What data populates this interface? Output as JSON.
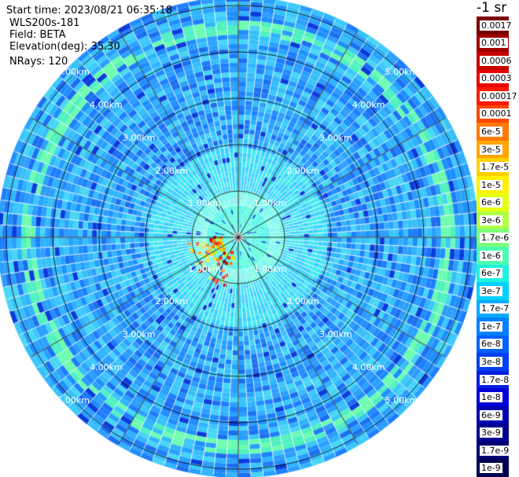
{
  "info": {
    "start_time": "Start time: 2023/08/21 06:35:18",
    "instrument": "WLS200s-181",
    "field": "Field: BETA",
    "elevation": "Elevation(deg): 35.30",
    "nrays": "NRays: 120"
  },
  "range_rings": {
    "labels": [
      "1.00km",
      "2.00km",
      "3.00km",
      "4.00km",
      "5.00km"
    ]
  },
  "colorbar": {
    "title": "-1 sr",
    "labels": [
      "0.0017",
      "0.001",
      "0.0006",
      "0.0003",
      "0.00017",
      "0.0001",
      "6e-5",
      "3e-5",
      "1.7e-5",
      "1e-5",
      "6e-6",
      "3e-6",
      "1.7e-6",
      "1e-6",
      "6e-7",
      "3e-7",
      "1.7e-7",
      "1e-7",
      "6e-8",
      "3e-8",
      "1.7e-8",
      "1e-8",
      "6e-9",
      "3e-9",
      "1.7e-9",
      "1e-9"
    ],
    "colors": [
      "#7a0000",
      "#a00000",
      "#c80000",
      "#e60000",
      "#ff1a00",
      "#ff4800",
      "#ff7a00",
      "#ffa500",
      "#ffd000",
      "#fff000",
      "#e6ff10",
      "#b0ff45",
      "#7dff7a",
      "#4dffb0",
      "#20f0e0",
      "#00d0ff",
      "#00aaff",
      "#0080ff",
      "#0060ff",
      "#0040f0",
      "#0020e0",
      "#0000d8",
      "#0000b0",
      "#000090",
      "#000070",
      "#000050"
    ]
  },
  "colors": {
    "background": "#ffffff",
    "ring_line": "#000000",
    "ray_gap": "#ffffff"
  }
}
